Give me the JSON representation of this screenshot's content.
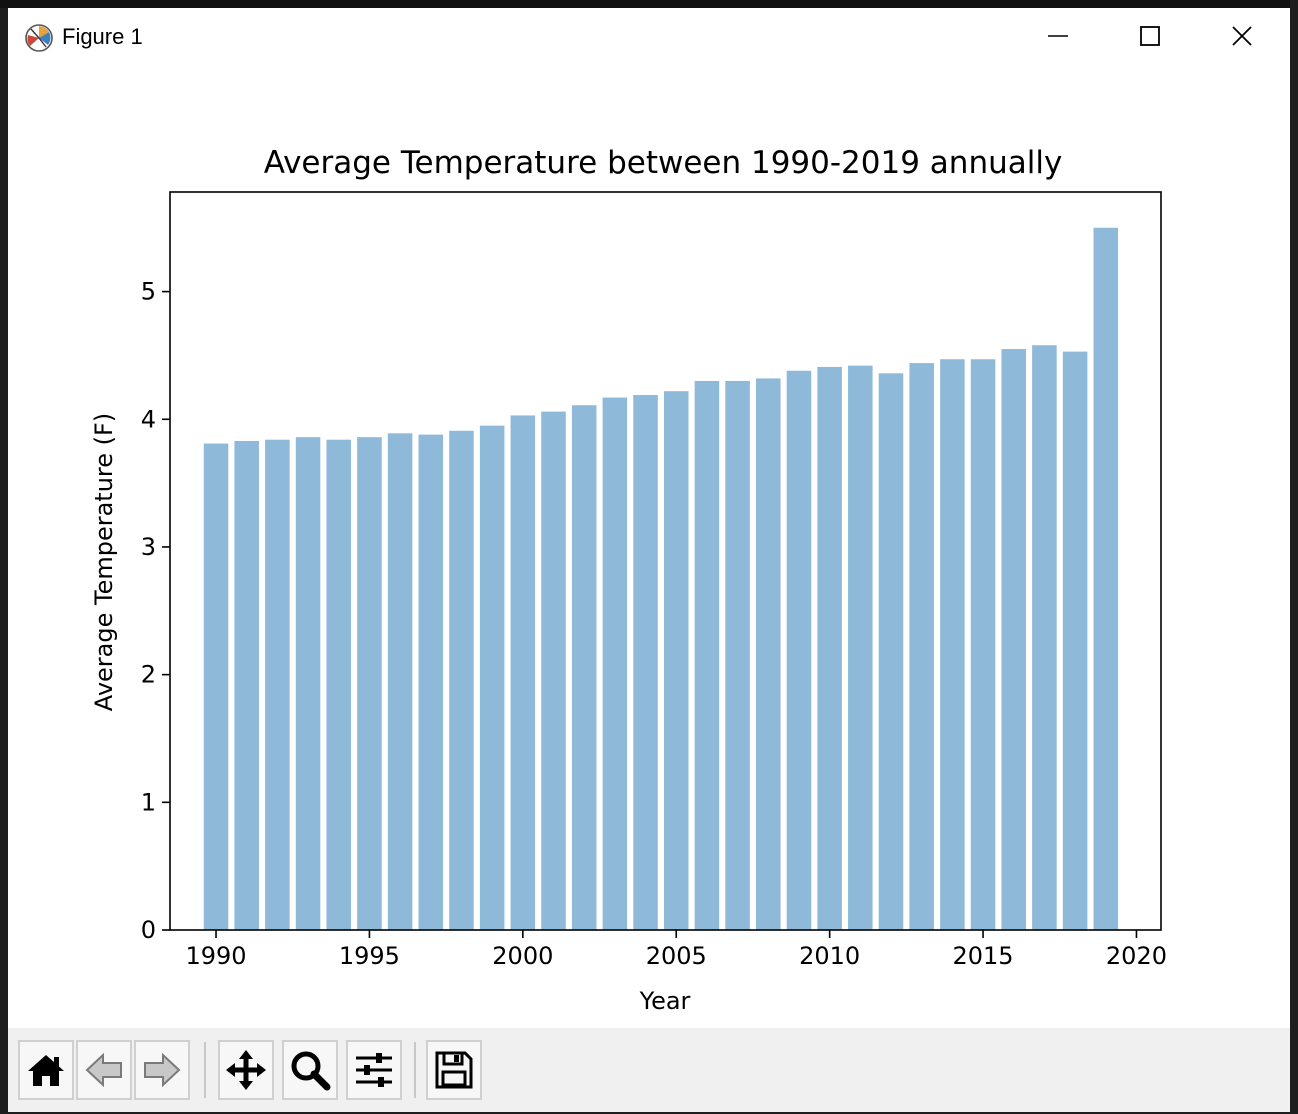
{
  "window": {
    "title": "Figure 1",
    "controls": {
      "minimize": "minimize-icon",
      "maximize": "maximize-icon",
      "close": "close-icon"
    }
  },
  "toolbar": {
    "buttons": [
      {
        "icon": "home-icon",
        "label": "Home"
      },
      {
        "icon": "back-arrow-icon",
        "label": "Back"
      },
      {
        "icon": "forward-arrow-icon",
        "label": "Forward"
      },
      {
        "icon": "pan-icon",
        "label": "Pan"
      },
      {
        "icon": "zoom-icon",
        "label": "Zoom"
      },
      {
        "icon": "configure-subplots-icon",
        "label": "Subplots"
      },
      {
        "icon": "save-icon",
        "label": "Save"
      }
    ]
  },
  "chart_data": {
    "type": "bar",
    "title": "Average Temperature between 1990-2019 annually",
    "xlabel": "Year",
    "ylabel": "Average Temperature (F)",
    "x": [
      1990,
      1991,
      1992,
      1993,
      1994,
      1995,
      1996,
      1997,
      1998,
      1999,
      2000,
      2001,
      2002,
      2003,
      2004,
      2005,
      2006,
      2007,
      2008,
      2009,
      2010,
      2011,
      2012,
      2013,
      2014,
      2015,
      2016,
      2017,
      2018,
      2019
    ],
    "values": [
      3.81,
      3.83,
      3.84,
      3.86,
      3.84,
      3.86,
      3.89,
      3.88,
      3.91,
      3.95,
      4.03,
      4.06,
      4.11,
      4.17,
      4.19,
      4.22,
      4.3,
      4.3,
      4.32,
      4.38,
      4.41,
      4.42,
      4.36,
      4.44,
      4.47,
      4.47,
      4.55,
      4.58,
      4.53,
      5.5
    ],
    "xlim": [
      1988.5,
      2020.8
    ],
    "ylim": [
      0,
      5.78
    ],
    "xticks": [
      1990,
      1995,
      2000,
      2005,
      2010,
      2015,
      2020
    ],
    "yticks": [
      0,
      1,
      2,
      3,
      4,
      5
    ],
    "bar_color": "#8fb9d9",
    "grid": false,
    "legend": "none"
  }
}
